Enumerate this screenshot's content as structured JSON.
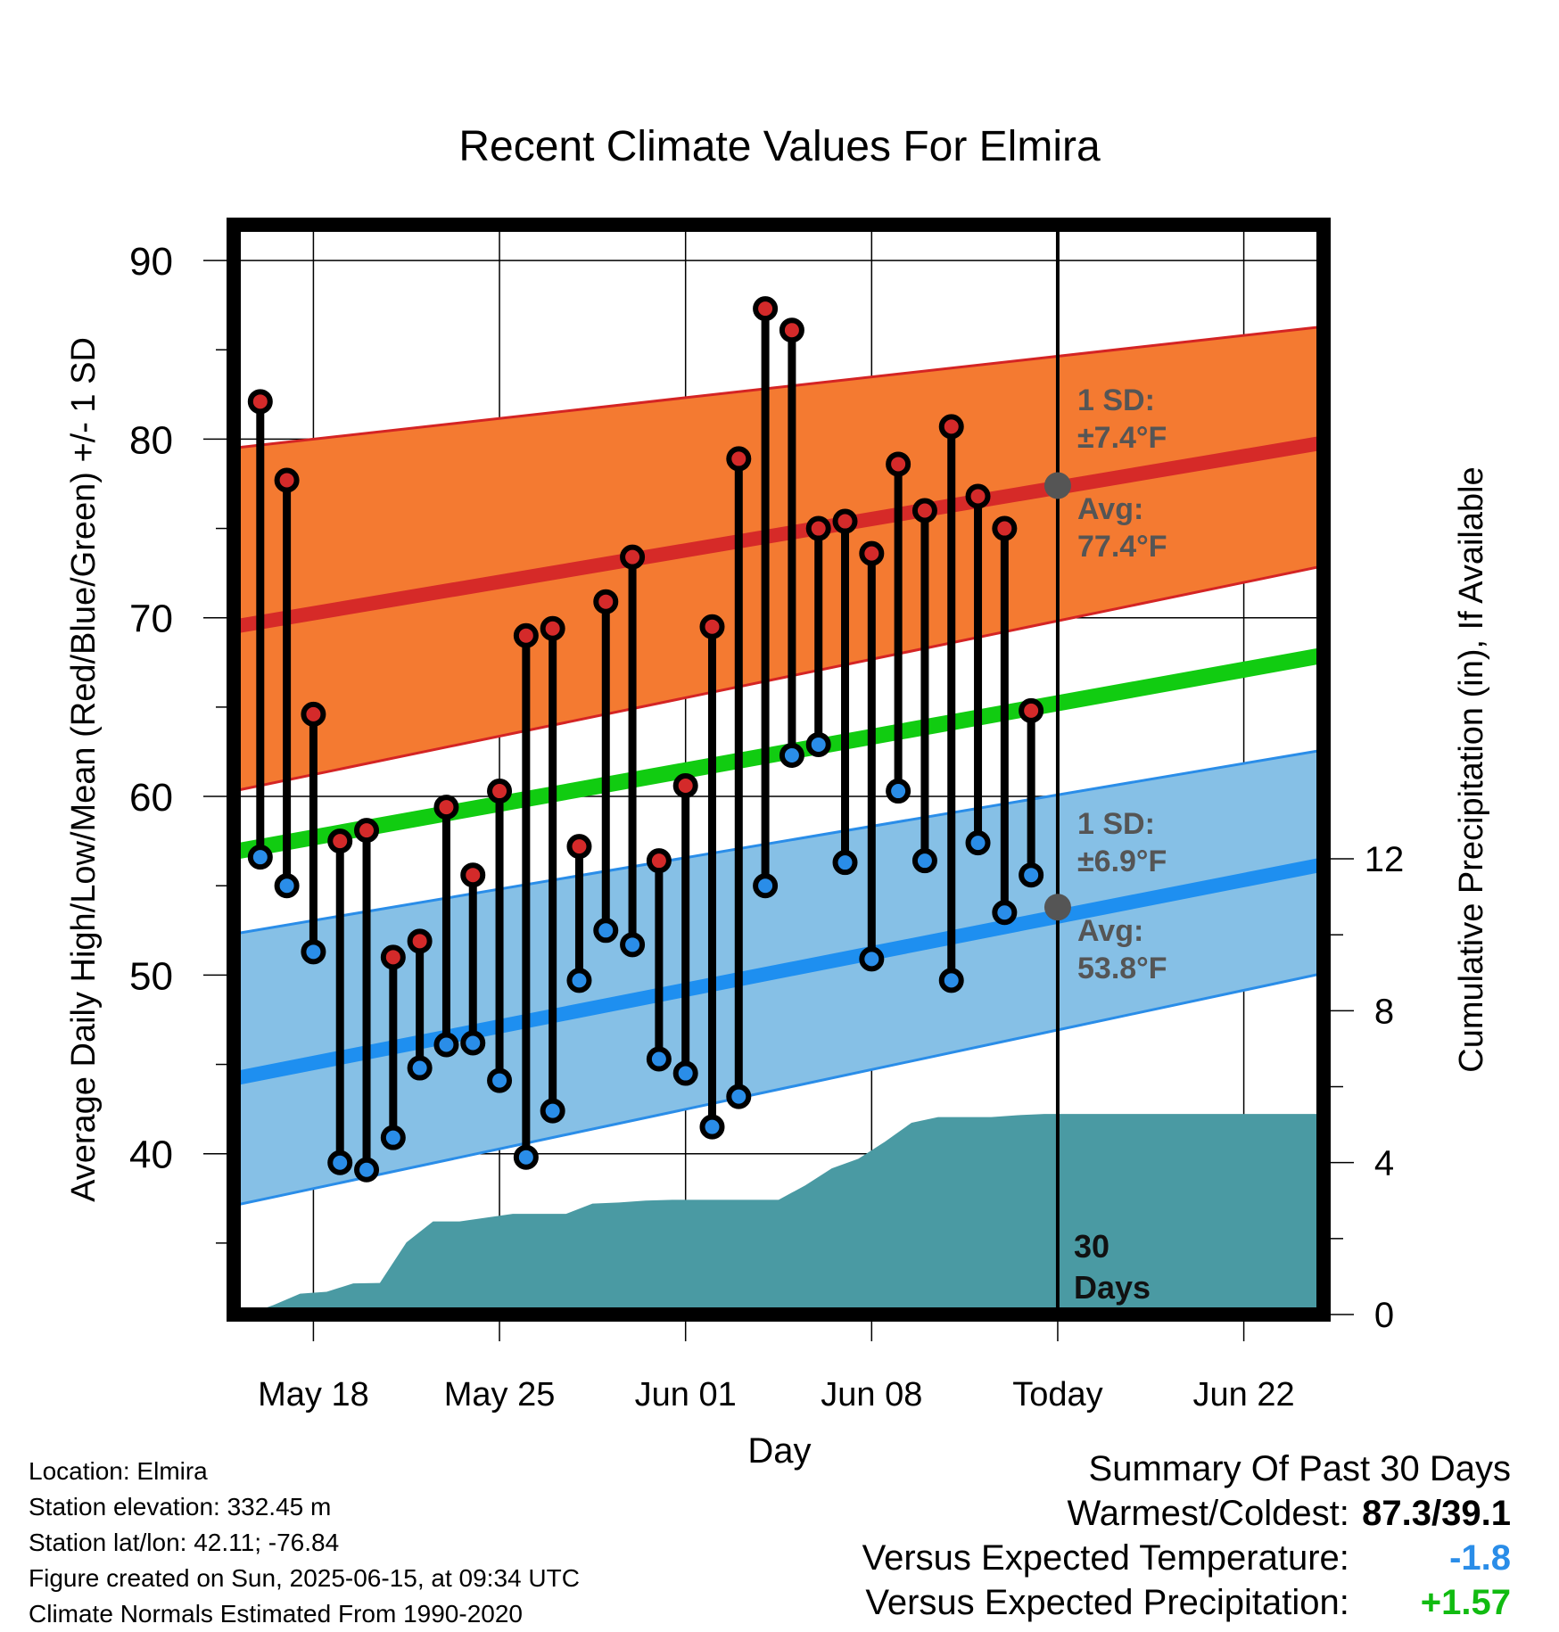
{
  "chart_data": {
    "type": "line",
    "title": "Recent Climate Values For Elmira",
    "xlabel": "Day",
    "ylabel_left": "Average Daily High/Low/Mean (Red/Blue/Green) +/- 1 SD",
    "ylabel_right": "Cumulative Precipitation (in), If Available",
    "x_tick_labels": [
      "May 18",
      "May 25",
      "Jun 01",
      "Jun 08",
      "Today",
      "Jun 22"
    ],
    "x_tick_days": [
      3,
      10,
      17,
      24,
      31,
      38
    ],
    "xlim_days": [
      0,
      41
    ],
    "y_left_ticks": [
      40,
      50,
      60,
      70,
      80,
      90
    ],
    "ylim_left": [
      31,
      92
    ],
    "y_right_ticks": [
      0,
      4,
      8,
      12
    ],
    "ylim_right": [
      0,
      28.7
    ],
    "today_day": 31,
    "grid": true,
    "normals": {
      "day": [
        0,
        41
      ],
      "high_mean": [
        69.5,
        79.8
      ],
      "high_upper": [
        79.5,
        86.3
      ],
      "high_lower": [
        60.3,
        72.9
      ],
      "low_mean": [
        44.2,
        56.2
      ],
      "low_upper": [
        52.3,
        62.6
      ],
      "low_lower": [
        37.1,
        50.1
      ],
      "mean": [
        56.9,
        67.9
      ]
    },
    "daily": {
      "day": [
        1,
        2,
        3,
        4,
        5,
        6,
        7,
        8,
        9,
        10,
        11,
        12,
        13,
        14,
        15,
        16,
        17,
        18,
        19,
        20,
        21,
        22,
        23,
        24,
        25,
        26,
        27,
        28,
        29,
        30
      ],
      "high": [
        82.1,
        77.7,
        64.6,
        57.5,
        58.1,
        51.0,
        51.9,
        59.4,
        55.6,
        60.3,
        69.0,
        69.4,
        57.2,
        70.9,
        73.4,
        56.4,
        60.6,
        69.5,
        78.9,
        87.3,
        86.1,
        75.0,
        75.4,
        73.6,
        78.6,
        76.0,
        80.7,
        76.8,
        75.0,
        64.8
      ],
      "low": [
        56.6,
        55.0,
        51.3,
        39.5,
        39.1,
        40.9,
        44.8,
        46.1,
        46.2,
        44.1,
        39.8,
        42.4,
        49.7,
        52.5,
        51.7,
        45.3,
        44.5,
        41.5,
        43.2,
        55.0,
        62.3,
        62.9,
        56.3,
        50.9,
        60.3,
        56.4,
        49.7,
        57.4,
        53.5,
        55.6
      ]
    },
    "precip_cumulative": {
      "day": [
        0.5,
        1.5,
        2.5,
        3.5,
        4.5,
        5.5,
        6.5,
        7.5,
        8.5,
        9.5,
        10.5,
        11.5,
        12.5,
        13.5,
        14.5,
        15.5,
        16.5,
        17.5,
        18.5,
        19.5,
        20.5,
        21.5,
        22.5,
        23.5,
        24.5,
        25.5,
        26.5,
        27.5,
        28.5,
        29.5,
        30.5,
        31.5,
        41
      ],
      "value": [
        0.0,
        0.25,
        0.55,
        0.6,
        0.82,
        0.83,
        1.9,
        2.45,
        2.45,
        2.55,
        2.65,
        2.65,
        2.65,
        2.92,
        2.95,
        3.0,
        3.02,
        3.02,
        3.02,
        3.02,
        3.02,
        3.4,
        3.85,
        4.1,
        4.55,
        5.05,
        5.2,
        5.2,
        5.2,
        5.25,
        5.28,
        5.28,
        5.28
      ]
    },
    "annotations": {
      "high_sd": "1 SD:",
      "high_sd_value": "±7.4°F",
      "high_avg": "Avg:",
      "high_avg_value": "77.4°F",
      "low_sd": "1 SD:",
      "low_sd_value": "±6.9°F",
      "low_avg": "Avg:",
      "low_avg_value": "53.8°F",
      "window_days": "30",
      "window_label": "Days"
    },
    "today_high_avg": 77.4,
    "today_low_avg": 53.8,
    "colors": {
      "high_band": "#f47a31",
      "high_band_edge": "#d42424",
      "high_mean": "#d62a28",
      "low_band": "#86c0e6",
      "low_band_edge": "#2a8de8",
      "low_mean": "#1e8ff0",
      "mean": "#11cc11",
      "precip": "#4a9aa3",
      "high_marker": "#d42a2a",
      "low_marker": "#2a8de8",
      "annotation_text": "#555555",
      "today_marker": "#555555"
    }
  },
  "info": {
    "location": "Location: Elmira",
    "elevation": "Station elevation: 332.45 m",
    "latlon": "Station lat/lon: 42.11; -76.84",
    "created": "Figure created on Sun, 2025-06-15, at 09:34 UTC",
    "normals": "Climate Normals Estimated From 1990-2020"
  },
  "summary": {
    "title": "Summary Of Past 30 Days",
    "warmest_label": "Warmest/Coldest:",
    "warmest_value": "87.3/39.1",
    "temp_label": "Versus Expected Temperature:",
    "temp_value": "-1.8",
    "temp_color": "#2a8de8",
    "precip_label": "Versus Expected Precipitation:",
    "precip_value": "+1.57",
    "precip_color": "#11bb11"
  }
}
